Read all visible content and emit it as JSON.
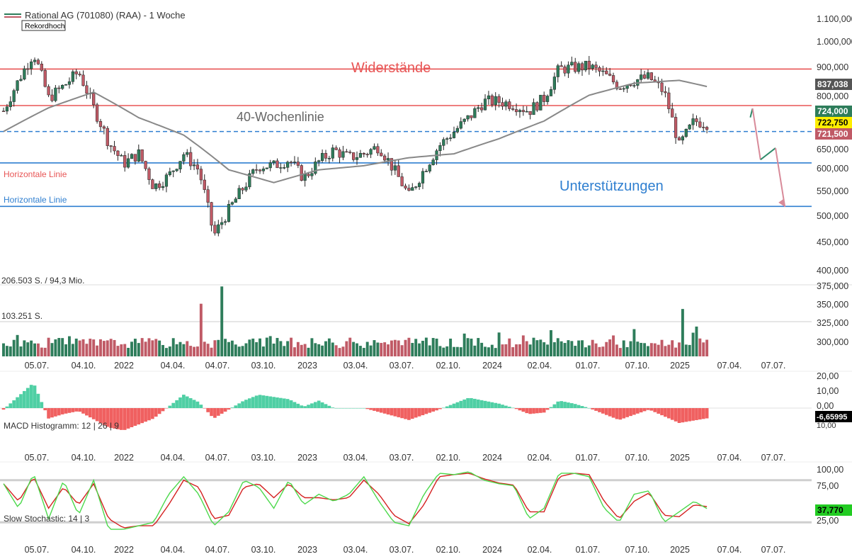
{
  "header": {
    "title": "Rational AG (701080) (RAA) - 1 Woche",
    "record_badge": "Rekordhoch"
  },
  "price_panel": {
    "annotations": {
      "resistance": "Widerstände",
      "support": "Unterstützungen",
      "ma_label": "40-Wochenlinie",
      "horizontal_red": "Horizontale Linie",
      "horizontal_blue": "Horizontale Linie"
    },
    "y_ticks": [
      "1.100,000",
      "1.000,000",
      "900,000",
      "800,000",
      "650,000",
      "600,000",
      "550,000",
      "500,000",
      "450,000",
      "400,000"
    ],
    "tags": [
      {
        "text": "837,038",
        "bg": "#555555",
        "fg": "#ffffff"
      },
      {
        "text": "724,000",
        "bg": "#2e7d5b",
        "fg": "#ffffff"
      },
      {
        "text": "722,750",
        "bg": "#ffee00",
        "fg": "#000000"
      },
      {
        "text": "721,500",
        "bg": "#c05a66",
        "fg": "#ffffff"
      }
    ],
    "lines": {
      "resistance_1": 900,
      "resistance_2": 777,
      "dashed_level": 700,
      "support_1": 617,
      "support_2": 518
    }
  },
  "volume_panel": {
    "label_total": "206.503 S. / 94,3 Mio.",
    "label_avg": "103.251 S.",
    "y_ticks": [
      "375,000",
      "350,000",
      "325,000",
      "300,000"
    ]
  },
  "macd_panel": {
    "label": "MACD Histogramm: 12 | 26 | 9",
    "y_ticks": [
      "20,00",
      "10,00",
      "0,00"
    ],
    "value_tag": "-6,65995",
    "partial_tick": "10,00"
  },
  "stoch_panel": {
    "label": "Slow Stochastic: 14 | 3",
    "y_ticks": [
      "100,00",
      "75,00",
      "25,00"
    ],
    "value_tag": "37,770"
  },
  "x_axis": {
    "labels": [
      "05.07.",
      "04.10.",
      "2022",
      "04.04.",
      "04.07.",
      "03.10.",
      "2023",
      "03.04.",
      "03.07.",
      "02.10.",
      "2024",
      "02.04.",
      "01.07.",
      "07.10.",
      "2025",
      "07.04.",
      "07.07."
    ]
  },
  "colors": {
    "up": "#2e7d5b",
    "down": "#c05a66",
    "resistance": "#e85555",
    "support": "#2f7fd0",
    "ma": "#888888",
    "macd_pos": "#4fcfa4",
    "macd_neg": "#f06060",
    "stoch_k": "#4cd94c",
    "stoch_d": "#d42020"
  },
  "chart_data": {
    "type": "candlestick",
    "title": "Rational AG (701080) (RAA) - 1 Woche",
    "interval": "1 Woche",
    "anchors": [
      {
        "x": "07.2021",
        "close": 760
      },
      {
        "x": "08.2021",
        "close": 860
      },
      {
        "x": "09.2021",
        "close": 960
      },
      {
        "x": "10.2021",
        "close": 800
      },
      {
        "x": "11.2021",
        "close": 840
      },
      {
        "x": "12.2021",
        "close": 890
      },
      {
        "x": "01.2022",
        "close": 770
      },
      {
        "x": "02.2022",
        "close": 670
      },
      {
        "x": "03.2022",
        "close": 615
      },
      {
        "x": "04.2022",
        "close": 640
      },
      {
        "x": "05.2022",
        "close": 560
      },
      {
        "x": "06.2022",
        "close": 585
      },
      {
        "x": "07.2022",
        "close": 640
      },
      {
        "x": "08.2022",
        "close": 600
      },
      {
        "x": "09.2022",
        "close": 460
      },
      {
        "x": "10.2022",
        "close": 510
      },
      {
        "x": "11.2022",
        "close": 560
      },
      {
        "x": "12.2022",
        "close": 610
      },
      {
        "x": "01.2023",
        "close": 610
      },
      {
        "x": "02.2023",
        "close": 625
      },
      {
        "x": "03.2023",
        "close": 580
      },
      {
        "x": "04.2023",
        "close": 620
      },
      {
        "x": "05.2023",
        "close": 650
      },
      {
        "x": "06.2023",
        "close": 630
      },
      {
        "x": "07.2023",
        "close": 640
      },
      {
        "x": "08.2023",
        "close": 660
      },
      {
        "x": "09.2023",
        "close": 600
      },
      {
        "x": "10.2023",
        "close": 540
      },
      {
        "x": "11.2023",
        "close": 600
      },
      {
        "x": "12.2023",
        "close": 660
      },
      {
        "x": "01.2024",
        "close": 700
      },
      {
        "x": "02.2024",
        "close": 740
      },
      {
        "x": "03.2024",
        "close": 790
      },
      {
        "x": "04.2024",
        "close": 790
      },
      {
        "x": "05.2024",
        "close": 780
      },
      {
        "x": "06.2024",
        "close": 760
      },
      {
        "x": "07.2024",
        "close": 800
      },
      {
        "x": "08.2024",
        "close": 900
      },
      {
        "x": "09.2024",
        "close": 905
      },
      {
        "x": "10.2024",
        "close": 910
      },
      {
        "x": "11.2024",
        "close": 880
      },
      {
        "x": "12.2024",
        "close": 840
      },
      {
        "x": "01.2025",
        "close": 860
      },
      {
        "x": "02.2025",
        "close": 870
      },
      {
        "x": "03.2025",
        "close": 820
      },
      {
        "x": "04.2025",
        "close": 660
      },
      {
        "x": "05.2025",
        "close": 730
      },
      {
        "x": "06.2025",
        "close": 722.75
      }
    ],
    "ma40_anchors": [
      {
        "x": "07.2021",
        "close": 700
      },
      {
        "x": "10.2021",
        "close": 770
      },
      {
        "x": "01.2022",
        "close": 820
      },
      {
        "x": "04.2022",
        "close": 740
      },
      {
        "x": "07.2022",
        "close": 690
      },
      {
        "x": "10.2022",
        "close": 600
      },
      {
        "x": "01.2023",
        "close": 570
      },
      {
        "x": "04.2023",
        "close": 600
      },
      {
        "x": "07.2023",
        "close": 610
      },
      {
        "x": "10.2023",
        "close": 630
      },
      {
        "x": "01.2024",
        "close": 640
      },
      {
        "x": "04.2024",
        "close": 680
      },
      {
        "x": "07.2024",
        "close": 730
      },
      {
        "x": "10.2024",
        "close": 810
      },
      {
        "x": "01.2025",
        "close": 850
      },
      {
        "x": "04.2025",
        "close": 860
      },
      {
        "x": "06.2025",
        "close": 837.038
      }
    ],
    "last": {
      "high": 724,
      "close": 722.75,
      "low": 721.5
    },
    "ma40_last": 837.038,
    "ylim": [
      400,
      1100
    ],
    "yscale": "log",
    "projection": [
      {
        "x": "06.2025",
        "close": 720
      },
      {
        "x": "07.2025",
        "close": 768
      },
      {
        "x": "08.2025",
        "close": 625
      },
      {
        "x": "09.2025",
        "close": 655
      },
      {
        "x": "10.2025",
        "close": 520
      }
    ],
    "volume": {
      "ylim": [
        280,
        380
      ],
      "ticks": [
        300,
        325,
        350,
        375
      ]
    },
    "macd_hist": {
      "anchors": [
        {
          "x": "07.2021",
          "value": -1
        },
        {
          "x": "09.2021",
          "value": 17
        },
        {
          "x": "10.2021",
          "value": -7
        },
        {
          "x": "11.2021",
          "value": -4
        },
        {
          "x": "12.2021",
          "value": -2
        },
        {
          "x": "02.2022",
          "value": -13
        },
        {
          "x": "03.2022",
          "value": -15
        },
        {
          "x": "05.2022",
          "value": -7
        },
        {
          "x": "07.2022",
          "value": 9
        },
        {
          "x": "08.2022",
          "value": 4
        },
        {
          "x": "09.2022",
          "value": -7
        },
        {
          "x": "11.2022",
          "value": 5
        },
        {
          "x": "12.2022",
          "value": 9
        },
        {
          "x": "02.2023",
          "value": 6
        },
        {
          "x": "03.2023",
          "value": 1
        },
        {
          "x": "04.2023",
          "value": 5
        },
        {
          "x": "05.2023",
          "value": 0
        },
        {
          "x": "07.2023",
          "value": 0
        },
        {
          "x": "10.2023",
          "value": -8
        },
        {
          "x": "12.2023",
          "value": -1
        },
        {
          "x": "02.2024",
          "value": 7
        },
        {
          "x": "04.2024",
          "value": 3
        },
        {
          "x": "05.2024",
          "value": 0
        },
        {
          "x": "06.2024",
          "value": -4
        },
        {
          "x": "07.2024",
          "value": -3
        },
        {
          "x": "08.2024",
          "value": 5
        },
        {
          "x": "09.2024",
          "value": 3
        },
        {
          "x": "10.2024",
          "value": 0
        },
        {
          "x": "12.2024",
          "value": -8
        },
        {
          "x": "02.2025",
          "value": -1
        },
        {
          "x": "04.2025",
          "value": -10
        },
        {
          "x": "06.2025",
          "value": -6.65995
        }
      ],
      "ylim": [
        -15,
        20
      ]
    },
    "stochastic": {
      "anchors": [
        {
          "x": "07.2021",
          "k": 75,
          "d": 75
        },
        {
          "x": "08.2021",
          "k": 40,
          "d": 50
        },
        {
          "x": "09.2021",
          "k": 90,
          "d": 85
        },
        {
          "x": "10.2021",
          "k": 25,
          "d": 40
        },
        {
          "x": "11.2021",
          "k": 80,
          "d": 70
        },
        {
          "x": "12.2021",
          "k": 30,
          "d": 45
        },
        {
          "x": "01.2022",
          "k": 80,
          "d": 75
        },
        {
          "x": "02.2022",
          "k": 10,
          "d": 25
        },
        {
          "x": "03.2022",
          "k": 10,
          "d": 12
        },
        {
          "x": "04.2022",
          "k": 15,
          "d": 15
        },
        {
          "x": "05.2022",
          "k": 20,
          "d": 15
        },
        {
          "x": "06.2022",
          "k": 60,
          "d": 45
        },
        {
          "x": "07.2022",
          "k": 85,
          "d": 80
        },
        {
          "x": "08.2022",
          "k": 60,
          "d": 70
        },
        {
          "x": "09.2022",
          "k": 15,
          "d": 25
        },
        {
          "x": "10.2022",
          "k": 35,
          "d": 30
        },
        {
          "x": "11.2022",
          "k": 80,
          "d": 70
        },
        {
          "x": "12.2022",
          "k": 70,
          "d": 75
        },
        {
          "x": "01.2023",
          "k": 40,
          "d": 55
        },
        {
          "x": "02.2023",
          "k": 80,
          "d": 75
        },
        {
          "x": "03.2023",
          "k": 45,
          "d": 55
        },
        {
          "x": "04.2023",
          "k": 60,
          "d": 55
        },
        {
          "x": "05.2023",
          "k": 50,
          "d": 52
        },
        {
          "x": "06.2023",
          "k": 60,
          "d": 55
        },
        {
          "x": "07.2023",
          "k": 85,
          "d": 80
        },
        {
          "x": "08.2023",
          "k": 50,
          "d": 60
        },
        {
          "x": "09.2023",
          "k": 20,
          "d": 30
        },
        {
          "x": "10.2023",
          "k": 15,
          "d": 18
        },
        {
          "x": "11.2023",
          "k": 60,
          "d": 45
        },
        {
          "x": "12.2023",
          "k": 90,
          "d": 85
        },
        {
          "x": "01.2024",
          "k": 88,
          "d": 88
        },
        {
          "x": "02.2024",
          "k": 92,
          "d": 90
        },
        {
          "x": "03.2024",
          "k": 80,
          "d": 82
        },
        {
          "x": "04.2024",
          "k": 75,
          "d": 76
        },
        {
          "x": "05.2024",
          "k": 72,
          "d": 73
        },
        {
          "x": "06.2024",
          "k": 25,
          "d": 35
        },
        {
          "x": "07.2024",
          "k": 40,
          "d": 35
        },
        {
          "x": "08.2024",
          "k": 90,
          "d": 85
        },
        {
          "x": "09.2024",
          "k": 90,
          "d": 90
        },
        {
          "x": "10.2024",
          "k": 85,
          "d": 88
        },
        {
          "x": "11.2024",
          "k": 40,
          "d": 50
        },
        {
          "x": "12.2024",
          "k": 20,
          "d": 25
        },
        {
          "x": "01.2025",
          "k": 60,
          "d": 50
        },
        {
          "x": "02.2025",
          "k": 65,
          "d": 62
        },
        {
          "x": "03.2025",
          "k": 20,
          "d": 30
        },
        {
          "x": "04.2025",
          "k": 35,
          "d": 28
        },
        {
          "x": "05.2025",
          "k": 50,
          "d": 45
        },
        {
          "x": "06.2025",
          "k": 37.77,
          "d": 42
        }
      ],
      "ylim": [
        0,
        100
      ],
      "bands": [
        20,
        80
      ]
    }
  }
}
